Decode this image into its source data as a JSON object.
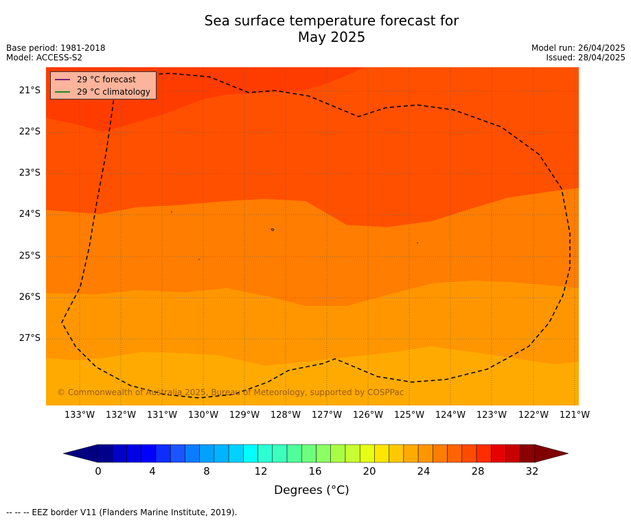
{
  "title_line1": "Sea surface temperature forecast for",
  "title_line2": "May 2025",
  "meta_left": {
    "base_period": "Base period: 1981-2018",
    "model": "Model: ACCESS-S2"
  },
  "meta_right": {
    "model_run": "Model run: 26/04/2025",
    "issued": "Issued: 28/04/2025"
  },
  "legend": {
    "forecast": {
      "label": "29 °C  forecast",
      "color": "#7a1f7a"
    },
    "climatology": {
      "label": "29 °C  climatology",
      "color": "#1f8a1f"
    }
  },
  "latitude_labels": [
    "21°S",
    "22°S",
    "23°S",
    "24°S",
    "25°S",
    "26°S",
    "27°S"
  ],
  "longitude_labels": [
    "133°W",
    "132°W",
    "131°W",
    "130°W",
    "129°W",
    "128°W",
    "127°W",
    "126°W",
    "125°W",
    "124°W",
    "123°W",
    "122°W",
    "121°W"
  ],
  "copyright": "© Commonwealth of Australia 2025, Bureau of Meteorology, supported by COSPPac",
  "colorbar": {
    "tick_labels": [
      "0",
      "4",
      "8",
      "12",
      "16",
      "20",
      "24",
      "28",
      "32"
    ],
    "title": "Degrees (°C)",
    "colors": [
      "#00008b",
      "#0000c8",
      "#0000e6",
      "#0000ff",
      "#0d2dff",
      "#1a55ff",
      "#0a7dff",
      "#00a0ff",
      "#00b4ff",
      "#00d2ff",
      "#00ffff",
      "#2dffd2",
      "#3cffbe",
      "#50ff9b",
      "#6eff7d",
      "#8cff64",
      "#aaff46",
      "#c8ff32",
      "#e6ff14",
      "#ffe600",
      "#ffc800",
      "#ffaa00",
      "#ff9600",
      "#ff7d00",
      "#ff6400",
      "#ff4b00",
      "#ff2d00",
      "#e60000",
      "#c80000",
      "#8b0000"
    ],
    "low_color": "#000080",
    "high_color": "#800000"
  },
  "map_colors": {
    "t29_plus": "#ff3c00",
    "t28_29": "#ff5000",
    "t27_28": "#ff7d00",
    "t26_27": "#ff9600",
    "t25_26": "#ffaa00"
  },
  "footnote": "--  --  -- EEZ border V11 (Flanders Marine Institute, 2019)."
}
